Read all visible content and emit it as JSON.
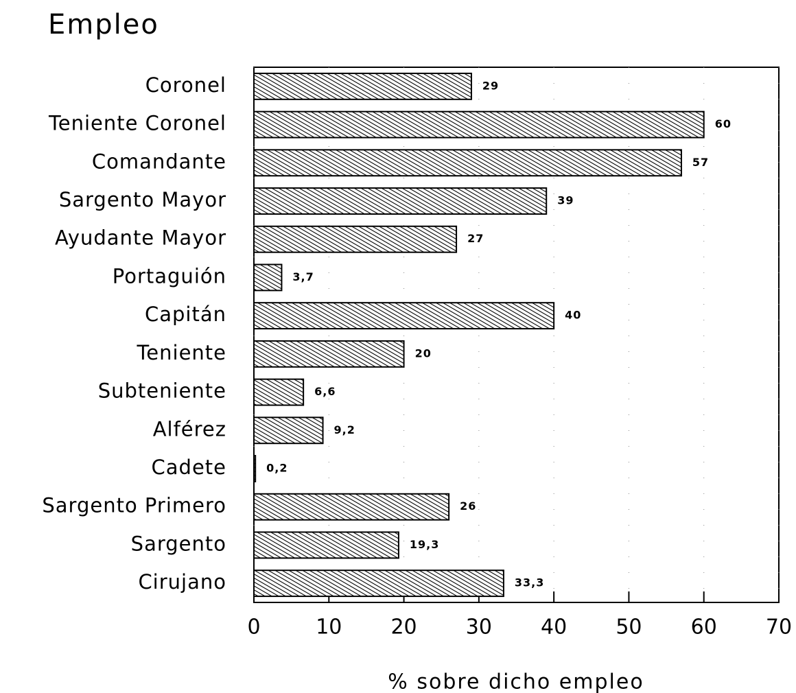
{
  "chart_data": {
    "type": "hbar",
    "title": "Empleo",
    "xlabel": "% sobre dicho empleo",
    "categories": [
      "Coronel",
      "Teniente Coronel",
      "Comandante",
      "Sargento Mayor",
      "Ayudante Mayor",
      "Portaguión",
      "Capitán",
      "Teniente",
      "Subteniente",
      "Alférez",
      "Cadete",
      "Sargento Primero",
      "Sargento",
      "Cirujano"
    ],
    "values": [
      29,
      60,
      57,
      39,
      27,
      3.7,
      40,
      20,
      6.6,
      9.2,
      0.2,
      26,
      19.3,
      33.3
    ],
    "value_labels": [
      "29",
      "60",
      "57",
      "39",
      "27",
      "3,7",
      "40",
      "20",
      "6,6",
      "9,2",
      "0,2",
      "26",
      "19,3",
      "33,3"
    ],
    "color": "#000000",
    "xlim": [
      0,
      70
    ],
    "xticks": [
      0,
      10,
      20,
      30,
      40,
      50,
      60,
      70
    ],
    "grid": true
  }
}
